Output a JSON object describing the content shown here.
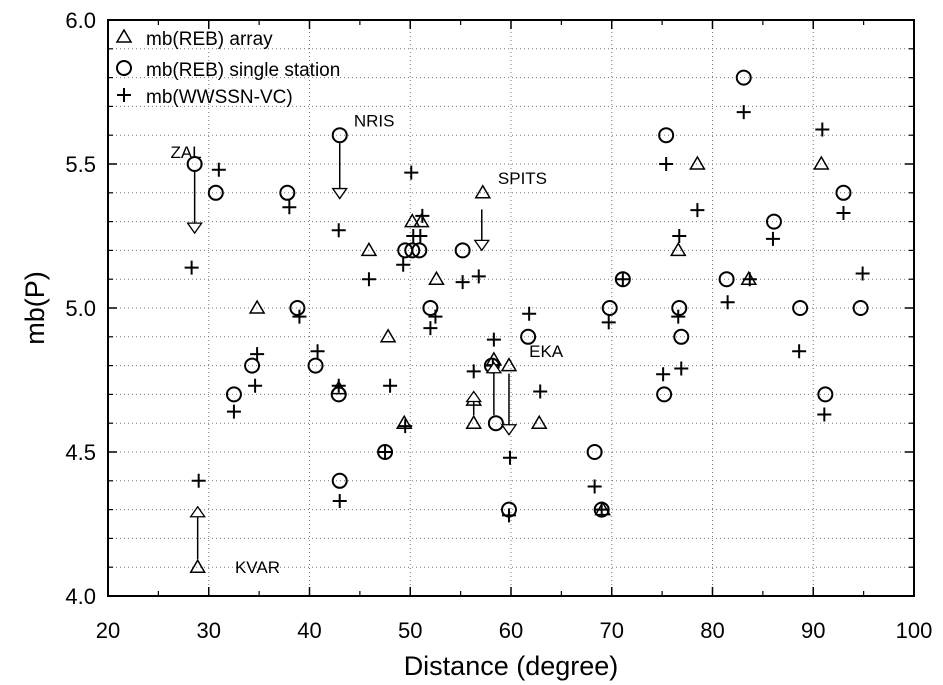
{
  "chart_data": {
    "type": "scatter",
    "xlabel": "Distance (degree)",
    "ylabel": "mb(P)",
    "xlim": [
      20,
      100
    ],
    "ylim": [
      4.0,
      6.0
    ],
    "x_ticks": [
      "20",
      "30",
      "40",
      "50",
      "60",
      "70",
      "80",
      "90",
      "100"
    ],
    "y_ticks": [
      "4.0",
      "4.5",
      "5.0",
      "5.5",
      "6.0"
    ],
    "grid": "dotted horizontal (minor 0.1) and vertical (every 10)",
    "legend_position": "top-left",
    "series": [
      {
        "name": "mb(REB) array",
        "marker": "triangle",
        "points": [
          [
            28.9,
            4.1
          ],
          [
            34.8,
            5.0
          ],
          [
            42.9,
            4.72
          ],
          [
            45.9,
            5.2
          ],
          [
            47.8,
            4.9
          ],
          [
            49.4,
            4.6
          ],
          [
            50.2,
            5.3
          ],
          [
            51.1,
            5.3
          ],
          [
            52.6,
            5.1
          ],
          [
            56.3,
            4.6
          ],
          [
            56.3,
            4.68
          ],
          [
            57.2,
            5.4
          ],
          [
            58.3,
            4.82
          ],
          [
            59.8,
            4.8
          ],
          [
            62.8,
            4.6
          ],
          [
            69.1,
            4.3
          ],
          [
            76.6,
            5.2
          ],
          [
            78.5,
            5.5
          ],
          [
            83.6,
            5.1
          ],
          [
            90.8,
            5.5
          ]
        ]
      },
      {
        "name": "mb(REB) single station",
        "marker": "circle",
        "points": [
          [
            28.6,
            5.5
          ],
          [
            30.7,
            5.4
          ],
          [
            32.5,
            4.7
          ],
          [
            34.3,
            4.8
          ],
          [
            37.8,
            5.4
          ],
          [
            38.8,
            5.0
          ],
          [
            40.6,
            4.8
          ],
          [
            43.0,
            5.6
          ],
          [
            42.9,
            4.7
          ],
          [
            43.0,
            4.4
          ],
          [
            47.5,
            4.5
          ],
          [
            49.5,
            5.2
          ],
          [
            50.2,
            5.2
          ],
          [
            50.9,
            5.2
          ],
          [
            52.0,
            5.0
          ],
          [
            55.2,
            5.2
          ],
          [
            58.1,
            4.8
          ],
          [
            58.5,
            4.6
          ],
          [
            59.8,
            4.3
          ],
          [
            61.7,
            4.9
          ],
          [
            68.3,
            4.5
          ],
          [
            69.0,
            4.3
          ],
          [
            69.8,
            5.0
          ],
          [
            71.1,
            5.1
          ],
          [
            75.2,
            4.7
          ],
          [
            75.4,
            5.6
          ],
          [
            76.7,
            5.0
          ],
          [
            76.9,
            4.9
          ],
          [
            81.4,
            5.1
          ],
          [
            83.1,
            5.8
          ],
          [
            86.1,
            5.3
          ],
          [
            88.7,
            5.0
          ],
          [
            91.2,
            4.7
          ],
          [
            93.0,
            5.4
          ],
          [
            94.7,
            5.0
          ]
        ]
      },
      {
        "name": "mb(WWSSN-VC)",
        "marker": "plus",
        "points": [
          [
            28.3,
            5.14
          ],
          [
            29.0,
            4.4
          ],
          [
            31.0,
            5.48
          ],
          [
            32.5,
            4.64
          ],
          [
            34.6,
            4.73
          ],
          [
            34.8,
            4.84
          ],
          [
            38.0,
            5.35
          ],
          [
            39.0,
            4.97
          ],
          [
            40.8,
            4.85
          ],
          [
            42.9,
            5.27
          ],
          [
            42.9,
            4.73
          ],
          [
            43.0,
            4.33
          ],
          [
            45.9,
            5.1
          ],
          [
            47.5,
            4.5
          ],
          [
            48.0,
            4.73
          ],
          [
            49.3,
            5.15
          ],
          [
            49.5,
            4.59
          ],
          [
            50.1,
            5.47
          ],
          [
            50.3,
            5.25
          ],
          [
            51.2,
            5.32
          ],
          [
            51.0,
            5.25
          ],
          [
            52.0,
            4.93
          ],
          [
            52.5,
            4.97
          ],
          [
            55.2,
            5.09
          ],
          [
            56.3,
            4.78
          ],
          [
            56.8,
            5.11
          ],
          [
            58.3,
            4.89
          ],
          [
            58.2,
            4.8
          ],
          [
            59.8,
            4.28
          ],
          [
            59.9,
            4.48
          ],
          [
            61.8,
            4.98
          ],
          [
            62.9,
            4.71
          ],
          [
            68.3,
            4.38
          ],
          [
            69.0,
            4.3
          ],
          [
            69.7,
            4.95
          ],
          [
            71.1,
            5.1
          ],
          [
            75.1,
            4.77
          ],
          [
            75.4,
            5.5
          ],
          [
            76.6,
            4.97
          ],
          [
            76.7,
            5.25
          ],
          [
            76.9,
            4.79
          ],
          [
            78.5,
            5.34
          ],
          [
            81.5,
            5.02
          ],
          [
            83.1,
            5.68
          ],
          [
            83.7,
            5.1
          ],
          [
            86.0,
            5.24
          ],
          [
            88.6,
            4.85
          ],
          [
            90.9,
            5.62
          ],
          [
            91.1,
            4.63
          ],
          [
            93.0,
            5.33
          ],
          [
            94.9,
            5.12
          ]
        ]
      }
    ],
    "annotations": [
      {
        "label": "ZAL",
        "x": 28.6,
        "from": 5.5,
        "to": 5.26,
        "label_x": 26.2,
        "label_y": 5.52
      },
      {
        "label": "NRIS",
        "x": 43.0,
        "from": 5.6,
        "to": 5.38,
        "label_x": 44.4,
        "label_y": 5.63
      },
      {
        "label": "SPITS",
        "x": 57.1,
        "from": 5.37,
        "to": 5.2,
        "label_x": 58.7,
        "label_y": 5.43
      },
      {
        "label": "EKA",
        "x": 59.8,
        "from": 4.8,
        "to": 4.56,
        "label_x": 61.8,
        "label_y": 4.83
      },
      {
        "label": "KVAR",
        "x": 28.9,
        "from": 4.1,
        "to": 4.31,
        "label_x": 32.6,
        "label_y": 4.08
      },
      {
        "label": "",
        "x": 56.3,
        "from": 4.6,
        "to": 4.71,
        "label_x": null,
        "label_y": null
      },
      {
        "label": "",
        "x": 58.3,
        "from": 4.6,
        "to": 4.81,
        "label_x": null,
        "label_y": null
      }
    ]
  }
}
